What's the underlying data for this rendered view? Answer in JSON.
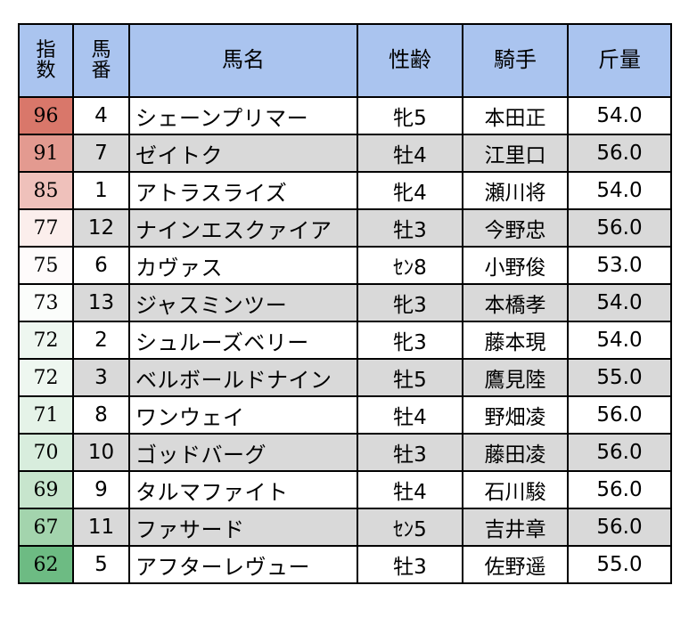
{
  "headers": {
    "index": "指数",
    "number": "馬番",
    "horse_name": "馬名",
    "sex_age": "性齢",
    "jockey": "騎手",
    "weight": "斤量"
  },
  "rows": [
    {
      "index": "96",
      "number": "4",
      "horse_name": "シェーンプリマー",
      "sex_age": "牝5",
      "jockey": "本田正",
      "weight": "54.0",
      "index_color": "#d9776a"
    },
    {
      "index": "91",
      "number": "7",
      "horse_name": "ゼイトク",
      "sex_age": "牡4",
      "jockey": "江里口",
      "weight": "56.0",
      "index_color": "#e39a90"
    },
    {
      "index": "85",
      "number": "1",
      "horse_name": "アトラスライズ",
      "sex_age": "牝4",
      "jockey": "瀬川将",
      "weight": "54.0",
      "index_color": "#efc1bb"
    },
    {
      "index": "77",
      "number": "12",
      "horse_name": "ナインエスクァイア",
      "sex_age": "牡3",
      "jockey": "今野忠",
      "weight": "56.0",
      "index_color": "#fbeeec"
    },
    {
      "index": "75",
      "number": "6",
      "horse_name": "カヴァス",
      "sex_age": "ｾﾝ8",
      "jockey": "小野俊",
      "weight": "53.0",
      "index_color": "#fefbfb"
    },
    {
      "index": "73",
      "number": "13",
      "horse_name": "ジャスミンツー",
      "sex_age": "牝3",
      "jockey": "本橋孝",
      "weight": "54.0",
      "index_color": "#fbfdfb"
    },
    {
      "index": "72",
      "number": "2",
      "horse_name": "シュルーズベリー",
      "sex_age": "牝3",
      "jockey": "藤本現",
      "weight": "54.0",
      "index_color": "#eef7f0"
    },
    {
      "index": "72",
      "number": "3",
      "horse_name": "ベルボールドナイン",
      "sex_age": "牡5",
      "jockey": "鷹見陸",
      "weight": "55.0",
      "index_color": "#eef7f0"
    },
    {
      "index": "71",
      "number": "8",
      "horse_name": "ワンウェイ",
      "sex_age": "牡4",
      "jockey": "野畑凌",
      "weight": "56.0",
      "index_color": "#e5f3e8"
    },
    {
      "index": "70",
      "number": "10",
      "horse_name": "ゴッドバーグ",
      "sex_age": "牡3",
      "jockey": "藤田凌",
      "weight": "56.0",
      "index_color": "#d8eddd"
    },
    {
      "index": "69",
      "number": "9",
      "horse_name": "タルマファイト",
      "sex_age": "牡4",
      "jockey": "石川駿",
      "weight": "56.0",
      "index_color": "#c7e5cd"
    },
    {
      "index": "67",
      "number": "11",
      "horse_name": "ファサード",
      "sex_age": "ｾﾝ5",
      "jockey": "吉井章",
      "weight": "56.0",
      "index_color": "#a3d4ad"
    },
    {
      "index": "62",
      "number": "5",
      "horse_name": "アフターレヴュー",
      "sex_age": "牡3",
      "jockey": "佐野遥",
      "weight": "55.0",
      "index_color": "#6dbb83"
    }
  ],
  "colors": {
    "header_bg": "#aac4ef",
    "row_stripe": "#d9d9d9",
    "border": "#000000"
  }
}
